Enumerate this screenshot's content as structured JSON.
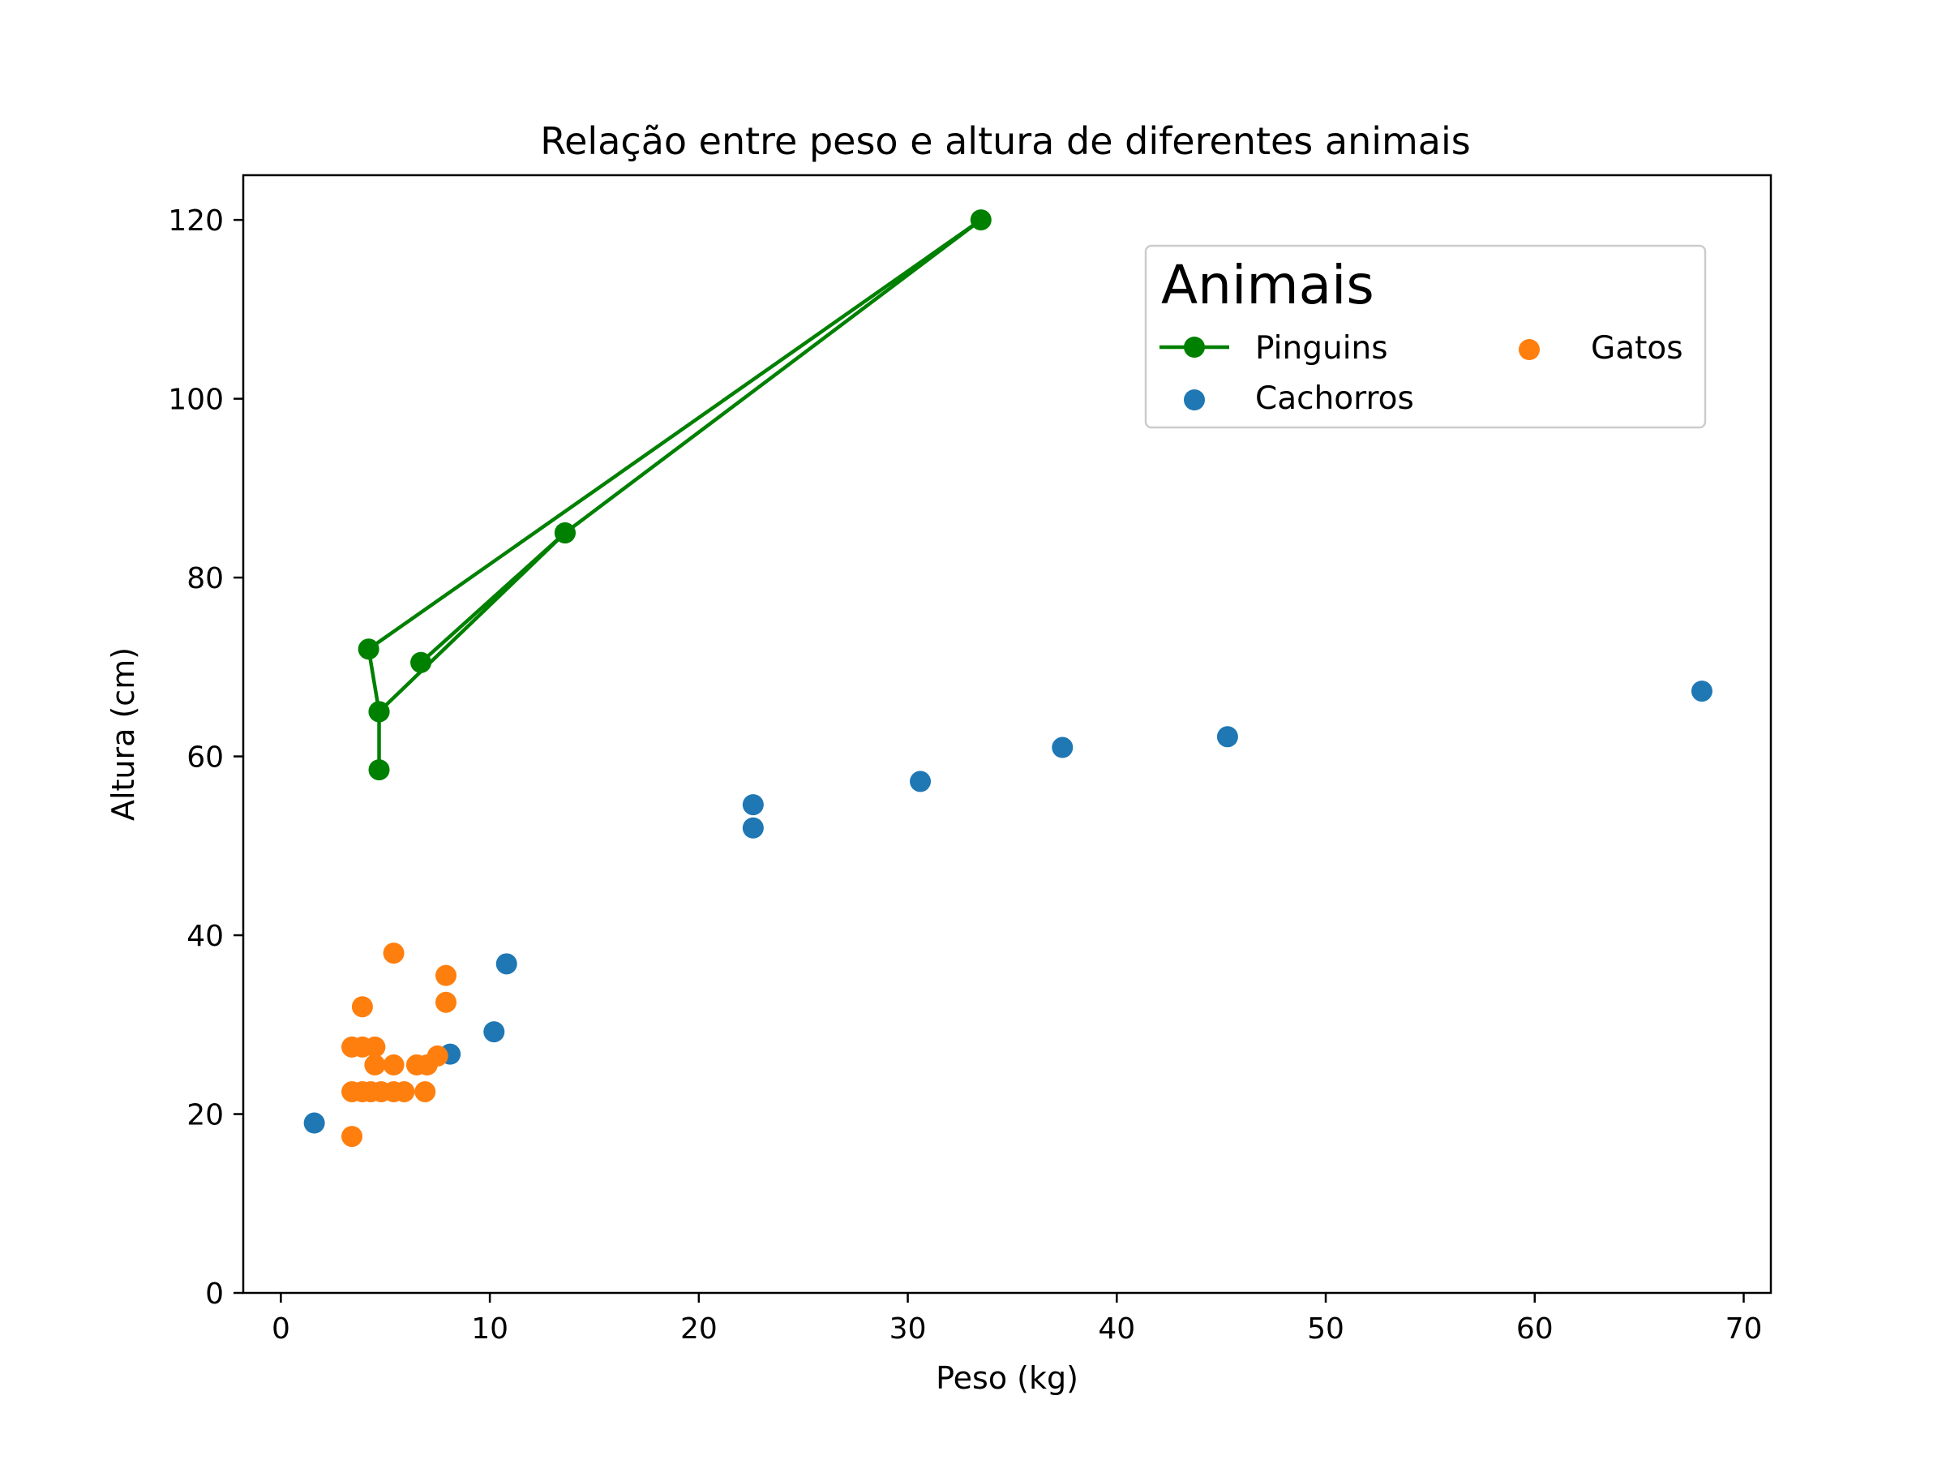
{
  "chart_data": {
    "type": "scatter",
    "title": "Relação entre peso e altura de diferentes animais",
    "xlabel": "Peso (kg)",
    "ylabel": "Altura (cm)",
    "xlim": [
      -1.8,
      71.3
    ],
    "ylim": [
      0,
      125
    ],
    "xticks": [
      0,
      10,
      20,
      30,
      40,
      50,
      60,
      70
    ],
    "yticks": [
      0,
      20,
      40,
      60,
      80,
      100,
      120
    ],
    "grid": false,
    "legend": {
      "title": "Animais",
      "placement": "top-right",
      "columns": 2
    },
    "series": [
      {
        "name": "Pinguins",
        "style": "line-marker",
        "color": "#008000",
        "points": [
          [
            4.7,
            58.5
          ],
          [
            4.7,
            65.0
          ],
          [
            4.2,
            72.0
          ],
          [
            33.5,
            120.0
          ],
          [
            13.6,
            85.0
          ],
          [
            6.7,
            70.5
          ],
          [
            13.6,
            85.0
          ],
          [
            4.7,
            65.0
          ]
        ]
      },
      {
        "name": "Gatos",
        "style": "marker",
        "color": "#ff7f0e",
        "points": [
          [
            3.4,
            17.5
          ],
          [
            3.4,
            22.5
          ],
          [
            3.9,
            22.5
          ],
          [
            4.3,
            22.5
          ],
          [
            4.8,
            22.5
          ],
          [
            5.4,
            22.5
          ],
          [
            5.9,
            22.5
          ],
          [
            6.9,
            22.5
          ],
          [
            3.4,
            27.5
          ],
          [
            3.9,
            27.5
          ],
          [
            4.5,
            27.5
          ],
          [
            4.5,
            25.5
          ],
          [
            5.4,
            25.5
          ],
          [
            6.5,
            25.5
          ],
          [
            7.0,
            25.5
          ],
          [
            7.5,
            26.5
          ],
          [
            3.9,
            32.0
          ],
          [
            5.4,
            38.0
          ],
          [
            7.9,
            35.5
          ],
          [
            7.9,
            32.5
          ]
        ]
      },
      {
        "name": "Cachorros",
        "style": "marker",
        "color": "#1f77b4",
        "points": [
          [
            1.6,
            19.0
          ],
          [
            8.1,
            26.7
          ],
          [
            10.2,
            29.2
          ],
          [
            10.8,
            36.8
          ],
          [
            22.6,
            52.0
          ],
          [
            22.6,
            54.6
          ],
          [
            30.6,
            57.2
          ],
          [
            37.4,
            61.0
          ],
          [
            45.3,
            62.2
          ],
          [
            68.0,
            67.3
          ]
        ]
      }
    ]
  }
}
